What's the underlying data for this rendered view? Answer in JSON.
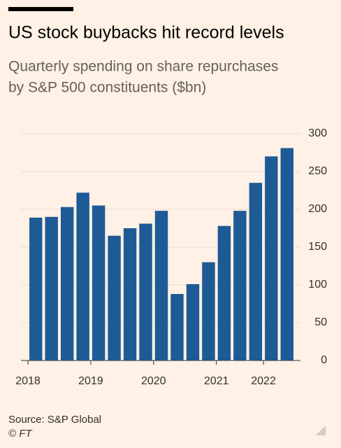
{
  "chart_data": {
    "type": "bar",
    "title": "US stock buybacks hit record levels",
    "subtitle": [
      "Quarterly spending on share repurchases",
      "by S&P 500 constituents ($bn)"
    ],
    "source": "Source: S&P Global",
    "credit": "© FT",
    "categories": [
      "2018",
      null,
      null,
      null,
      "2019",
      null,
      null,
      null,
      "2020",
      null,
      null,
      null,
      "2021",
      null,
      null,
      "2022",
      null
    ],
    "values": [
      189,
      190,
      203,
      222,
      205,
      165,
      175,
      181,
      198,
      88,
      101,
      130,
      178,
      198,
      235,
      270,
      281
    ],
    "color": "#1e5a96",
    "ylim": [
      0,
      300
    ],
    "yticks": [
      0,
      50,
      100,
      150,
      200,
      250,
      300
    ],
    "grid": true
  }
}
